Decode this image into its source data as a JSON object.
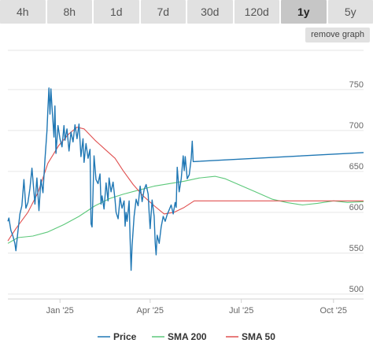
{
  "tabs": [
    {
      "label": "4h",
      "active": false
    },
    {
      "label": "8h",
      "active": false
    },
    {
      "label": "1d",
      "active": false
    },
    {
      "label": "7d",
      "active": false
    },
    {
      "label": "30d",
      "active": false
    },
    {
      "label": "120d",
      "active": false
    },
    {
      "label": "1y",
      "active": true
    },
    {
      "label": "5y",
      "active": false
    }
  ],
  "remove_graph_label": "remove graph",
  "colors": {
    "price": "#1f77b4",
    "sma200": "#5cc87a",
    "sma50": "#e05050",
    "grid": "#e6e6e6",
    "tab_bg": "#e1e1e1",
    "tab_active_bg": "#c6c6c6"
  },
  "chart_data": {
    "type": "line",
    "x_axis": {
      "type": "date",
      "range": [
        "2024-11-10",
        "2025-10-31"
      ],
      "ticks": [
        "Jan '25",
        "Apr '25",
        "Jul '25",
        "Oct '25"
      ],
      "tick_dates": [
        "2025-01-01",
        "2025-04-01",
        "2025-07-01",
        "2025-10-01"
      ]
    },
    "y_axis": {
      "range": [
        494,
        798
      ],
      "ticks": [
        500,
        550,
        600,
        650,
        700,
        750
      ],
      "position": "right"
    },
    "grid": true,
    "legend_position": "bottom",
    "series": [
      {
        "name": "Price",
        "color": "#1f77b4",
        "points": [
          [
            "2024-11-10",
            589
          ],
          [
            "2024-11-11",
            593
          ],
          [
            "2024-11-13",
            578
          ],
          [
            "2024-11-15",
            571
          ],
          [
            "2024-11-17",
            562
          ],
          [
            "2024-11-18",
            553
          ],
          [
            "2024-11-20",
            576
          ],
          [
            "2024-11-22",
            598
          ],
          [
            "2024-11-24",
            608
          ],
          [
            "2024-11-26",
            640
          ],
          [
            "2024-11-28",
            605
          ],
          [
            "2024-11-30",
            612
          ],
          [
            "2024-12-02",
            629
          ],
          [
            "2024-12-04",
            654
          ],
          [
            "2024-12-06",
            625
          ],
          [
            "2024-12-07",
            610
          ],
          [
            "2024-12-09",
            642
          ],
          [
            "2024-12-11",
            602
          ],
          [
            "2024-12-13",
            640
          ],
          [
            "2024-12-15",
            624
          ],
          [
            "2024-12-17",
            664
          ],
          [
            "2024-12-19",
            700
          ],
          [
            "2024-12-20",
            727
          ],
          [
            "2024-12-21",
            752
          ],
          [
            "2024-12-22",
            720
          ],
          [
            "2024-12-23",
            751
          ],
          [
            "2024-12-24",
            730
          ],
          [
            "2024-12-26",
            692
          ],
          [
            "2024-12-27",
            730
          ],
          [
            "2024-12-28",
            672
          ],
          [
            "2024-12-30",
            706
          ],
          [
            "2025-01-01",
            690
          ],
          [
            "2025-01-03",
            680
          ],
          [
            "2025-01-05",
            706
          ],
          [
            "2025-01-06",
            688
          ],
          [
            "2025-01-08",
            702
          ],
          [
            "2025-01-10",
            675
          ],
          [
            "2025-01-12",
            698
          ],
          [
            "2025-01-14",
            686
          ],
          [
            "2025-01-16",
            707
          ],
          [
            "2025-01-18",
            690
          ],
          [
            "2025-01-20",
            708
          ],
          [
            "2025-01-22",
            668
          ],
          [
            "2025-01-24",
            690
          ],
          [
            "2025-01-25",
            661
          ],
          [
            "2025-01-27",
            684
          ],
          [
            "2025-01-29",
            666
          ],
          [
            "2025-01-31",
            677
          ],
          [
            "2025-02-01",
            586
          ],
          [
            "2025-02-02",
            582
          ],
          [
            "2025-02-04",
            669
          ],
          [
            "2025-02-06",
            640
          ],
          [
            "2025-02-08",
            635
          ],
          [
            "2025-02-10",
            647
          ],
          [
            "2025-02-11",
            610
          ],
          [
            "2025-02-12",
            620
          ],
          [
            "2025-02-14",
            604
          ],
          [
            "2025-02-16",
            636
          ],
          [
            "2025-02-18",
            614
          ],
          [
            "2025-02-19",
            642
          ],
          [
            "2025-02-21",
            625
          ],
          [
            "2025-02-23",
            637
          ],
          [
            "2025-02-25",
            615
          ],
          [
            "2025-02-26",
            600
          ],
          [
            "2025-02-28",
            592
          ],
          [
            "2025-03-02",
            618
          ],
          [
            "2025-03-04",
            605
          ],
          [
            "2025-03-06",
            614
          ],
          [
            "2025-03-07",
            583
          ],
          [
            "2025-03-08",
            600
          ],
          [
            "2025-03-09",
            589
          ],
          [
            "2025-03-11",
            614
          ],
          [
            "2025-03-12",
            569
          ],
          [
            "2025-03-13",
            529
          ],
          [
            "2025-03-14",
            560
          ],
          [
            "2025-03-16",
            595
          ],
          [
            "2025-03-18",
            616
          ],
          [
            "2025-03-20",
            608
          ],
          [
            "2025-03-22",
            632
          ],
          [
            "2025-03-24",
            613
          ],
          [
            "2025-03-26",
            628
          ],
          [
            "2025-03-28",
            634
          ],
          [
            "2025-03-30",
            622
          ],
          [
            "2025-03-31",
            600
          ],
          [
            "2025-04-01",
            580
          ],
          [
            "2025-04-03",
            615
          ],
          [
            "2025-04-05",
            595
          ],
          [
            "2025-04-06",
            563
          ],
          [
            "2025-04-07",
            548
          ],
          [
            "2025-04-08",
            572
          ],
          [
            "2025-04-10",
            562
          ],
          [
            "2025-04-12",
            582
          ],
          [
            "2025-04-14",
            595
          ],
          [
            "2025-04-16",
            589
          ],
          [
            "2025-04-18",
            597
          ],
          [
            "2025-04-20",
            603
          ],
          [
            "2025-04-22",
            609
          ],
          [
            "2025-04-24",
            598
          ],
          [
            "2025-04-26",
            612
          ],
          [
            "2025-04-27",
            606
          ],
          [
            "2025-04-28",
            655
          ],
          [
            "2025-04-30",
            625
          ],
          [
            "2025-05-02",
            641
          ],
          [
            "2025-05-04",
            669
          ],
          [
            "2025-05-05",
            651
          ],
          [
            "2025-05-06",
            668
          ],
          [
            "2025-05-08",
            641
          ],
          [
            "2025-05-10",
            646
          ],
          [
            "2025-05-12",
            666
          ],
          [
            "2025-05-13",
            687
          ],
          [
            "2025-05-14",
            662
          ],
          [
            "2025-10-31",
            673
          ]
        ]
      },
      {
        "name": "SMA 200",
        "color": "#5cc87a",
        "points": [
          [
            "2024-11-10",
            562
          ],
          [
            "2024-11-20",
            569
          ],
          [
            "2024-12-05",
            571
          ],
          [
            "2024-12-20",
            576
          ],
          [
            "2025-01-05",
            585
          ],
          [
            "2025-01-20",
            595
          ],
          [
            "2025-02-05",
            608
          ],
          [
            "2025-02-20",
            617
          ],
          [
            "2025-03-05",
            622
          ],
          [
            "2025-03-20",
            627
          ],
          [
            "2025-04-05",
            632
          ],
          [
            "2025-04-20",
            635
          ],
          [
            "2025-05-05",
            638
          ],
          [
            "2025-05-20",
            642
          ],
          [
            "2025-06-05",
            644
          ],
          [
            "2025-06-15",
            641
          ],
          [
            "2025-06-30",
            633
          ],
          [
            "2025-07-15",
            625
          ],
          [
            "2025-08-01",
            616
          ],
          [
            "2025-08-15",
            612
          ],
          [
            "2025-08-31",
            609
          ],
          [
            "2025-09-15",
            611
          ],
          [
            "2025-10-01",
            614
          ],
          [
            "2025-10-15",
            612
          ],
          [
            "2025-10-31",
            613
          ]
        ]
      },
      {
        "name": "SMA 50",
        "color": "#e05050",
        "points": [
          [
            "2024-11-10",
            565
          ],
          [
            "2024-11-18",
            580
          ],
          [
            "2024-11-30",
            600
          ],
          [
            "2024-12-10",
            624
          ],
          [
            "2024-12-20",
            660
          ],
          [
            "2024-12-31",
            682
          ],
          [
            "2025-01-10",
            696
          ],
          [
            "2025-01-18",
            704
          ],
          [
            "2025-01-25",
            702
          ],
          [
            "2025-02-05",
            688
          ],
          [
            "2025-02-15",
            677
          ],
          [
            "2025-02-25",
            666
          ],
          [
            "2025-03-05",
            651
          ],
          [
            "2025-03-15",
            634
          ],
          [
            "2025-03-25",
            620
          ],
          [
            "2025-04-05",
            608
          ],
          [
            "2025-04-15",
            598
          ],
          [
            "2025-04-25",
            600
          ],
          [
            "2025-05-05",
            606
          ],
          [
            "2025-05-15",
            614
          ],
          [
            "2025-10-31",
            614
          ]
        ]
      }
    ]
  }
}
